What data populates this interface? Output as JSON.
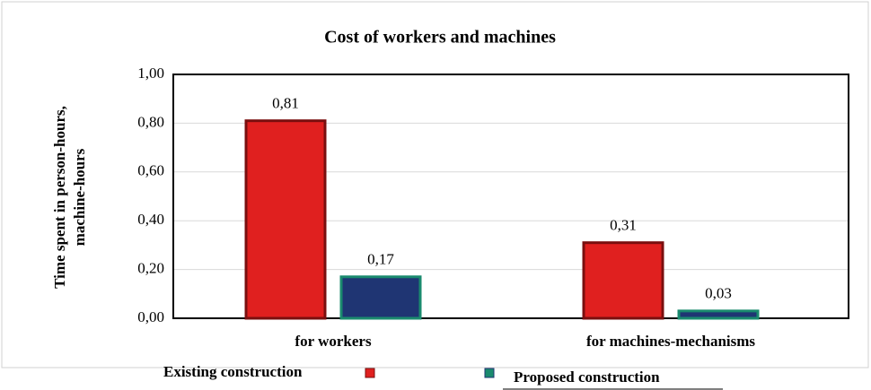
{
  "chart_data": {
    "type": "bar",
    "title": "Cost of workers and machines",
    "y_label": [
      "Time spent in person-hours,",
      "machine-hours"
    ],
    "categories": [
      "for workers",
      "for machines-mechanisms"
    ],
    "series": [
      {
        "name": "Existing construction",
        "color": "#e0201f",
        "values": [
          0.81,
          0.31
        ],
        "value_labels": [
          "0,81",
          "0,31"
        ]
      },
      {
        "name": "Proposed construction",
        "color": "#1f3573",
        "values": [
          0.17,
          0.03
        ],
        "value_labels": [
          "0,17",
          "0,03"
        ]
      }
    ],
    "ylim": [
      0,
      1
    ],
    "yticks": [
      {
        "value": 0,
        "label": "0,00"
      },
      {
        "value": 0.2,
        "label": "0,20"
      },
      {
        "value": 0.4,
        "label": "0,40"
      },
      {
        "value": 0.6,
        "label": "0,60"
      },
      {
        "value": 0.8,
        "label": "0,80"
      },
      {
        "value": 1,
        "label": "1,00"
      }
    ],
    "grid": true
  }
}
